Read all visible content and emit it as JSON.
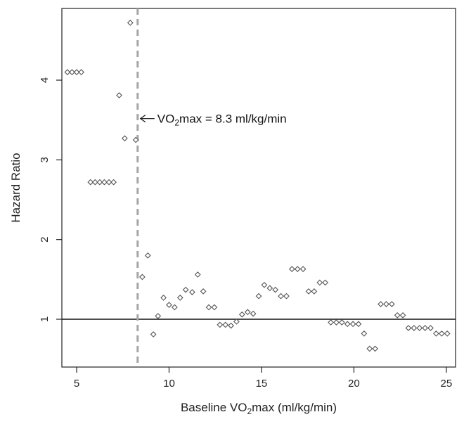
{
  "chart_data": {
    "type": "scatter",
    "title": "",
    "xlabel": {
      "prefix": "Baseline VO",
      "subscript": "2",
      "suffix": "max (ml/kg/min)"
    },
    "ylabel": "Hazard Ratio",
    "xlim": [
      4.2,
      25.5
    ],
    "ylim": [
      0.4,
      4.9
    ],
    "xticks": [
      5,
      10,
      15,
      20,
      25
    ],
    "yticks": [
      1,
      2,
      3,
      4
    ],
    "reference_hline": 1,
    "cutoff_vline": 8.3,
    "annotation": {
      "prefix": "VO",
      "subscript": "2",
      "suffix": "max = 8.3 ml/kg/min",
      "x": 8.3,
      "y": 3.5
    },
    "marker": "diamond",
    "colors": {
      "points": "#555555",
      "vline": "#a6a6a6",
      "axis": "#222222"
    },
    "points": [
      [
        4.5,
        4.1
      ],
      [
        4.75,
        4.1
      ],
      [
        5.0,
        4.1
      ],
      [
        5.25,
        4.1
      ],
      [
        5.75,
        2.72
      ],
      [
        6.0,
        2.72
      ],
      [
        6.25,
        2.72
      ],
      [
        6.5,
        2.72
      ],
      [
        6.75,
        2.72
      ],
      [
        7.0,
        2.72
      ],
      [
        7.3,
        3.81
      ],
      [
        7.6,
        3.27
      ],
      [
        7.9,
        4.72
      ],
      [
        8.2,
        3.25
      ],
      [
        8.55,
        1.53
      ],
      [
        8.85,
        1.8
      ],
      [
        9.15,
        0.81
      ],
      [
        9.4,
        1.04
      ],
      [
        9.7,
        1.27
      ],
      [
        10.0,
        1.18
      ],
      [
        10.3,
        1.15
      ],
      [
        10.6,
        1.27
      ],
      [
        10.9,
        1.37
      ],
      [
        11.25,
        1.34
      ],
      [
        11.55,
        1.56
      ],
      [
        11.85,
        1.35
      ],
      [
        12.15,
        1.15
      ],
      [
        12.45,
        1.15
      ],
      [
        12.75,
        0.93
      ],
      [
        13.05,
        0.93
      ],
      [
        13.35,
        0.92
      ],
      [
        13.65,
        0.97
      ],
      [
        13.95,
        1.06
      ],
      [
        14.25,
        1.09
      ],
      [
        14.55,
        1.07
      ],
      [
        14.85,
        1.29
      ],
      [
        15.15,
        1.43
      ],
      [
        15.45,
        1.39
      ],
      [
        15.75,
        1.37
      ],
      [
        16.05,
        1.29
      ],
      [
        16.35,
        1.29
      ],
      [
        16.65,
        1.63
      ],
      [
        16.95,
        1.63
      ],
      [
        17.25,
        1.63
      ],
      [
        17.55,
        1.35
      ],
      [
        17.85,
        1.35
      ],
      [
        18.15,
        1.46
      ],
      [
        18.45,
        1.46
      ],
      [
        18.75,
        0.96
      ],
      [
        19.05,
        0.96
      ],
      [
        19.35,
        0.96
      ],
      [
        19.65,
        0.94
      ],
      [
        19.95,
        0.94
      ],
      [
        20.25,
        0.94
      ],
      [
        20.55,
        0.82
      ],
      [
        20.85,
        0.63
      ],
      [
        21.15,
        0.63
      ],
      [
        21.45,
        1.19
      ],
      [
        21.75,
        1.19
      ],
      [
        22.05,
        1.19
      ],
      [
        22.35,
        1.05
      ],
      [
        22.65,
        1.05
      ],
      [
        22.95,
        0.89
      ],
      [
        23.25,
        0.89
      ],
      [
        23.55,
        0.89
      ],
      [
        23.85,
        0.89
      ],
      [
        24.15,
        0.89
      ],
      [
        24.45,
        0.82
      ],
      [
        24.75,
        0.82
      ],
      [
        25.05,
        0.82
      ]
    ]
  }
}
